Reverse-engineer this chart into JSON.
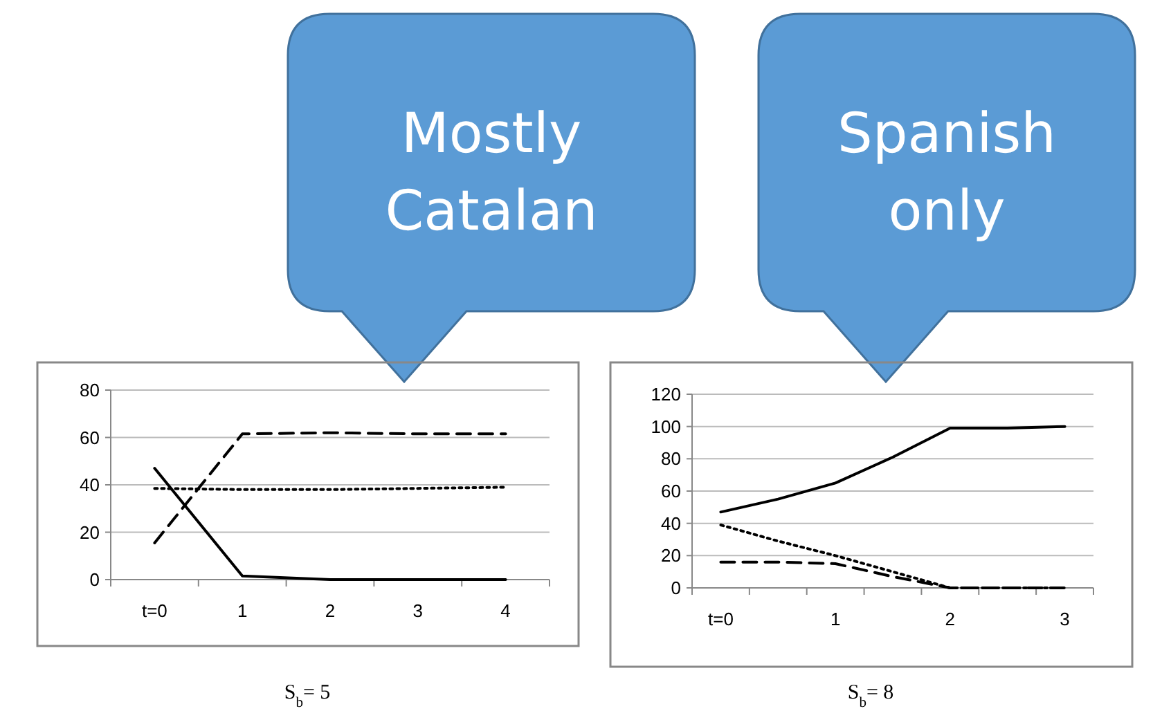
{
  "chart_data": [
    {
      "type": "line",
      "xlabel": "S$_{b}$= 5",
      "annotations": [
        "Mostly Catalan"
      ],
      "grid": "y",
      "marker": "none",
      "categories": [
        "t=0",
        "1",
        "2",
        "3",
        "4"
      ],
      "ylim": [
        0,
        80
      ],
      "yticks": [
        0,
        20,
        40,
        60,
        80
      ],
      "series": [
        {
          "color": "#000000",
          "line_style": "solid",
          "values": [
            47,
            1.5,
            0,
            0,
            0
          ]
        },
        {
          "color": "#000000",
          "line_style": "dashed",
          "values": [
            15.5,
            61.5,
            62,
            61.5,
            61.5
          ]
        },
        {
          "color": "#000000",
          "line_style": "dotted",
          "values": [
            38.5,
            38,
            38,
            38.5,
            39
          ]
        }
      ]
    },
    {
      "type": "line",
      "xlabel": "S$_{b}$= 8",
      "annotations": [
        "Spanish only"
      ],
      "grid": "y",
      "marker": "none",
      "categories": [
        "t=0",
        null,
        "1",
        null,
        "2",
        null,
        "3"
      ],
      "ylim": [
        0,
        120
      ],
      "yticks": [
        0,
        20,
        40,
        60,
        80,
        100,
        120
      ],
      "series": [
        {
          "color": "#000000",
          "line_style": "solid",
          "values": [
            47,
            55,
            65,
            81,
            99,
            99,
            100
          ]
        },
        {
          "color": "#000000",
          "line_style": "dashed",
          "values": [
            16,
            16,
            15,
            7,
            0,
            0,
            0
          ]
        },
        {
          "color": "#000000",
          "line_style": "dotted",
          "values": [
            39,
            29,
            20,
            10,
            0,
            0,
            0
          ]
        }
      ]
    }
  ]
}
